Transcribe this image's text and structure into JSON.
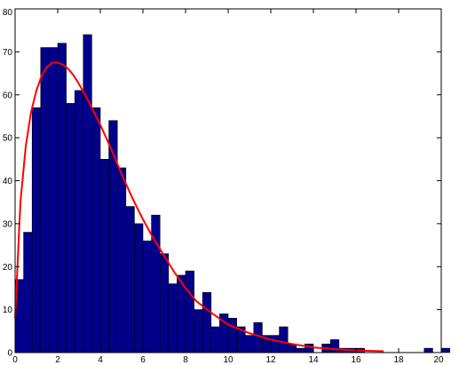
{
  "chart_data": {
    "type": "bar",
    "title": "",
    "xlabel": "",
    "ylabel": "",
    "xlim": [
      0,
      20
    ],
    "ylim": [
      0,
      80
    ],
    "grid": false,
    "bar_color": "#00008b",
    "curve_color": "#ff0000",
    "x_ticks": [
      "0",
      "2",
      "4",
      "6",
      "8",
      "10",
      "12",
      "14",
      "16",
      "18",
      "20"
    ],
    "y_ticks": [
      "0",
      "10",
      "20",
      "30",
      "40",
      "50",
      "60",
      "70",
      "80"
    ],
    "bins": {
      "start": 0,
      "width": 0.4,
      "counts": [
        17,
        28,
        57,
        71,
        71,
        72,
        58,
        61,
        74,
        57,
        45,
        54,
        43,
        34,
        30,
        26,
        32,
        23,
        16,
        18,
        19,
        10,
        14,
        6,
        9,
        8,
        6,
        4,
        7,
        4,
        4,
        6,
        2,
        1,
        2,
        0,
        2,
        3,
        1,
        1,
        1,
        0,
        0,
        0,
        0,
        0,
        0,
        0,
        1,
        0,
        1
      ]
    },
    "series": [
      {
        "type": "line",
        "x": [
          0.0,
          0.25,
          0.5,
          0.75,
          1.0,
          1.25,
          1.5,
          1.75,
          2.0,
          2.25,
          2.5,
          2.75,
          3.0,
          3.5,
          4.0,
          4.5,
          5.0,
          5.5,
          6.0,
          6.5,
          7.0,
          7.5,
          8.0,
          8.5,
          9.0,
          10.0,
          11.0,
          12.0,
          13.0,
          14.0,
          15.0,
          16.0,
          17.3
        ],
        "y": [
          8,
          35,
          48,
          56,
          61,
          64.5,
          66.5,
          67.5,
          67.5,
          67,
          66,
          64.5,
          62.5,
          58,
          53,
          47.5,
          41.5,
          36,
          31,
          26.5,
          22.5,
          18.5,
          15,
          12,
          10,
          6.5,
          4.5,
          3,
          2,
          1.2,
          0.8,
          0.5,
          0.3
        ]
      }
    ]
  }
}
